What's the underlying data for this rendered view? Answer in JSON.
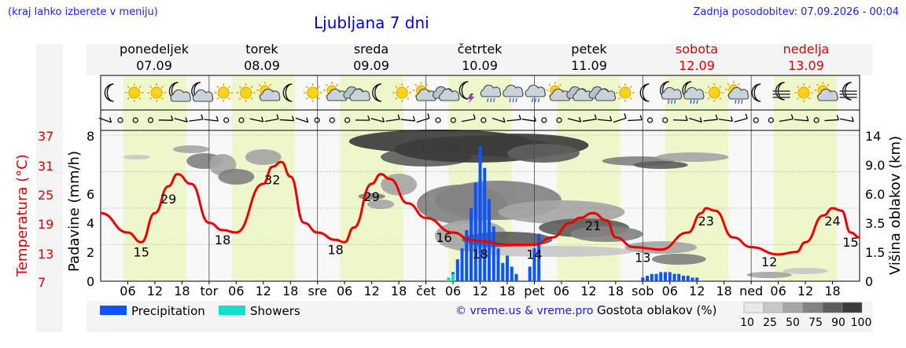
{
  "header": {
    "hint": "(kraj lahko izberete v meniju)",
    "title": "Ljubljana 7 dni",
    "updated": "Zadnja posodobitev: 07.09.2026 - 00:04"
  },
  "days": [
    {
      "name": "ponedeljek",
      "date": "07.09",
      "weekend": false
    },
    {
      "name": "torek",
      "date": "08.09",
      "weekend": false
    },
    {
      "name": "sreda",
      "date": "09.09",
      "weekend": false
    },
    {
      "name": "četrtek",
      "date": "10.09",
      "weekend": false
    },
    {
      "name": "petek",
      "date": "11.09",
      "weekend": false
    },
    {
      "name": "sobota",
      "date": "12.09",
      "weekend": true
    },
    {
      "name": "nedelja",
      "date": "13.09",
      "weekend": true
    }
  ],
  "icons": [
    "moon-icon",
    "sun-icon",
    "sun-icon",
    "partly-cloudy-night-icon",
    "partly-cloudy-night-icon",
    "sun-icon",
    "sun-icon",
    "partly-cloudy-icon",
    "moon-icon",
    "sun-icon",
    "partly-cloudy-icon",
    "cloudy-icon",
    "moon-icon",
    "sun-icon",
    "partly-cloudy-icon",
    "cloudy-icon",
    "thunderstorm-icon",
    "rain-cloud-icon",
    "rain-cloud-icon",
    "rain-cloud-icon",
    "partly-cloudy-icon",
    "cloudy-icon",
    "cloudy-icon",
    "sun-icon",
    "moon-icon",
    "rain-night-icon",
    "rain-night-icon",
    "sun-icon",
    "rain-sun-icon",
    "moon-icon",
    "fog-night-icon",
    "sun-icon",
    "partly-cloudy-icon",
    "fog-night-icon"
  ],
  "chart_data": {
    "type": "line",
    "x_unit": "hour from 07.09 00:00",
    "x_tick_labels": [
      "06",
      "12",
      "18",
      "tor",
      "06",
      "12",
      "18",
      "sre",
      "06",
      "12",
      "18",
      "čet",
      "06",
      "12",
      "18",
      "pet",
      "06",
      "12",
      "18",
      "sob",
      "06",
      "12",
      "18",
      "ned",
      "06",
      "12",
      "18"
    ],
    "y_left": {
      "label": "Padavine (mm/h)",
      "ticks": [
        "0",
        "2",
        "4",
        "6",
        "8"
      ],
      "range": [
        0,
        8
      ]
    },
    "y_temp": {
      "label": "Temperatura (°C)",
      "ticks": [
        "7",
        "13",
        "19",
        "25",
        "31",
        "37"
      ]
    },
    "y_right": {
      "label": "Višina oblakov (km)",
      "ticks": [
        "0",
        "1.5",
        "3.5",
        "6.0",
        "9.0",
        "14"
      ]
    },
    "temperature": {
      "name": "Temperatura",
      "color": "#ee0000",
      "points": [
        [
          0,
          21
        ],
        [
          6,
          17
        ],
        [
          9,
          15
        ],
        [
          12,
          21
        ],
        [
          15,
          26.5
        ],
        [
          17,
          29
        ],
        [
          20,
          27
        ],
        [
          24,
          19
        ],
        [
          27,
          17.5
        ],
        [
          30,
          17
        ],
        [
          36,
          27
        ],
        [
          38,
          30.5
        ],
        [
          40,
          31.5
        ],
        [
          42,
          28.5
        ],
        [
          45,
          19
        ],
        [
          48,
          17
        ],
        [
          52,
          15.5
        ],
        [
          54,
          15
        ],
        [
          56,
          18
        ],
        [
          60,
          27
        ],
        [
          62,
          29
        ],
        [
          64,
          28
        ],
        [
          68,
          23
        ],
        [
          72,
          20
        ],
        [
          78,
          17
        ],
        [
          82,
          15.5
        ],
        [
          84,
          15.2
        ],
        [
          90,
          14.5
        ],
        [
          96,
          14.5
        ],
        [
          100,
          16
        ],
        [
          104,
          19
        ],
        [
          106,
          20
        ],
        [
          109,
          21
        ],
        [
          112,
          19.5
        ],
        [
          114,
          16
        ],
        [
          118,
          14
        ],
        [
          124,
          13.5
        ],
        [
          130,
          17
        ],
        [
          133,
          21
        ],
        [
          134,
          22
        ],
        [
          136,
          21.5
        ],
        [
          140,
          16
        ],
        [
          144,
          14
        ],
        [
          150,
          12.5
        ],
        [
          154,
          13
        ],
        [
          156,
          15
        ],
        [
          160,
          20.5
        ],
        [
          162,
          22
        ],
        [
          164,
          21.5
        ],
        [
          166,
          17
        ],
        [
          168,
          16
        ]
      ],
      "labels": [
        {
          "x": 9,
          "text": "15"
        },
        {
          "x": 15,
          "text": "29"
        },
        {
          "x": 27,
          "text": "18"
        },
        {
          "x": 38,
          "text": "32"
        },
        {
          "x": 52,
          "text": "18"
        },
        {
          "x": 60,
          "text": "29"
        },
        {
          "x": 76,
          "text": "16"
        },
        {
          "x": 84,
          "text": "18"
        },
        {
          "x": 96,
          "text": "14"
        },
        {
          "x": 109,
          "text": "21"
        },
        {
          "x": 120,
          "text": "13"
        },
        {
          "x": 134,
          "text": "23"
        },
        {
          "x": 148,
          "text": "12"
        },
        {
          "x": 162,
          "text": "24"
        },
        {
          "x": 166,
          "text": "15"
        }
      ]
    },
    "precipitation": {
      "name": "Precipitation",
      "color": "#0a55ff",
      "values": [
        [
          78,
          0.5
        ],
        [
          79,
          1.2
        ],
        [
          80,
          1.8
        ],
        [
          81,
          2.8
        ],
        [
          82,
          4.0
        ],
        [
          83,
          5.4
        ],
        [
          84,
          7.4
        ],
        [
          85,
          6.2
        ],
        [
          86,
          4.5
        ],
        [
          87,
          3.0
        ],
        [
          88,
          1.8
        ],
        [
          89,
          1.0
        ],
        [
          90,
          1.4
        ],
        [
          91,
          0.8
        ],
        [
          92,
          0.4
        ],
        [
          95,
          0.8
        ],
        [
          96,
          1.8
        ],
        [
          97,
          2.6
        ],
        [
          120,
          0.2
        ],
        [
          121,
          0.3
        ],
        [
          122,
          0.4
        ],
        [
          123,
          0.4
        ],
        [
          124,
          0.5
        ],
        [
          125,
          0.5
        ],
        [
          126,
          0.5
        ],
        [
          127,
          0.4
        ],
        [
          128,
          0.4
        ],
        [
          129,
          0.3
        ],
        [
          130,
          0.3
        ],
        [
          131,
          0.2
        ],
        [
          132,
          0.2
        ]
      ]
    },
    "showers": {
      "name": "Showers",
      "color": "#10e0c8",
      "values": [
        [
          77,
          0.2
        ],
        [
          78,
          0.4
        ]
      ]
    },
    "cloud_density_legend": {
      "title": "Gostota oblakov (%)",
      "levels": [
        "10",
        "25",
        "50",
        "75",
        "90",
        "100"
      ],
      "colors": [
        "#e8e8e8",
        "#c8c8c8",
        "#a6a6a6",
        "#828282",
        "#5e5e5e",
        "#3c3c3c"
      ]
    },
    "credit": "© vreme.us & vreme.pro"
  }
}
